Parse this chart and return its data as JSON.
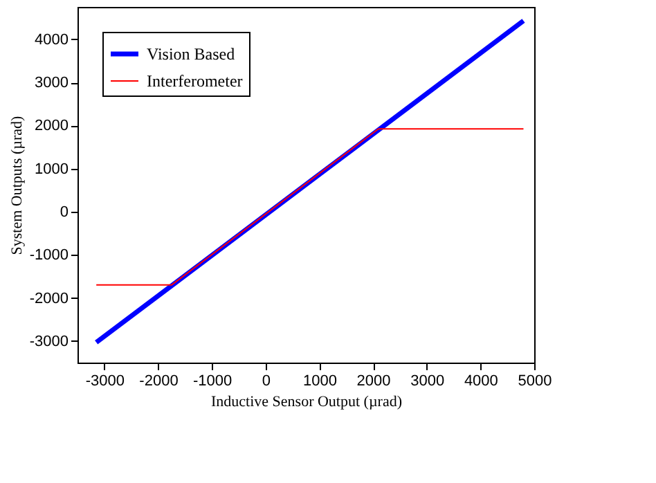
{
  "chart_data": {
    "type": "line",
    "xlabel": "Inductive Sensor Output (µrad)",
    "ylabel": "System Outputs (µrad)",
    "xlim": [
      -3500,
      5000
    ],
    "xticks": [
      -3000,
      -2000,
      -1000,
      0,
      1000,
      2000,
      3000,
      4000,
      5000
    ],
    "ylim": [
      -3500,
      4750
    ],
    "yticks": [
      -3000,
      -2000,
      -1000,
      0,
      1000,
      2000,
      3000,
      4000
    ],
    "grid": false,
    "legend": "top left",
    "line_style": "solid",
    "marker": "none",
    "series": [
      {
        "name": "Vision Based",
        "color": "#0000ff",
        "x": [
          -3150,
          4800
        ],
        "values": [
          -3030,
          4430
        ]
      },
      {
        "name": "Interferometer",
        "color": "#ff0000",
        "x": [
          -3150,
          -1750,
          2100,
          4800
        ],
        "values": [
          -1700,
          -1700,
          1920,
          1920
        ]
      }
    ]
  }
}
